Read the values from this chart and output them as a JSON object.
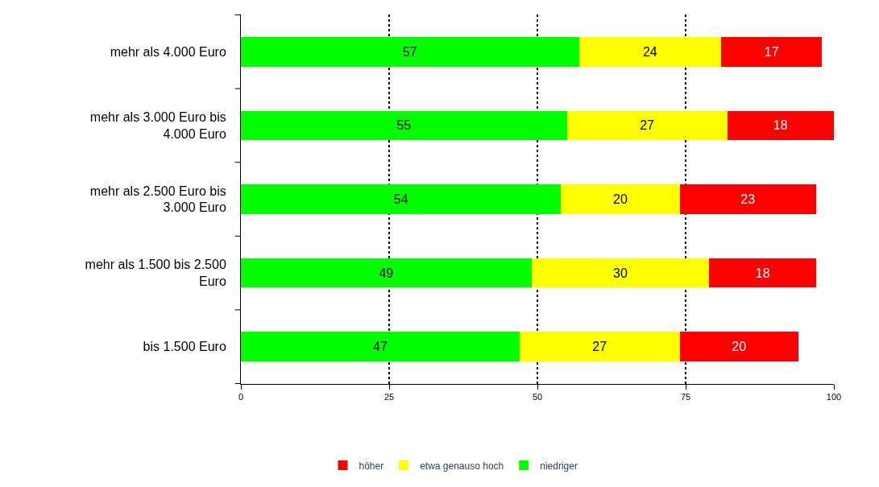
{
  "chart_data": {
    "type": "bar",
    "orientation": "horizontal",
    "stacked": true,
    "categories": [
      "mehr als 4.000 Euro",
      "mehr als 3.000 Euro bis 4.000 Euro",
      "mehr als 2.500 Euro bis 3.000 Euro",
      "mehr als 1.500 bis 2.500 Euro",
      "bis 1.500 Euro"
    ],
    "series": [
      {
        "name": "niedriger",
        "color": "#00ff00",
        "values": [
          57,
          55,
          54,
          49,
          47
        ]
      },
      {
        "name": "etwa genauso hoch",
        "color": "#ffff00",
        "values": [
          24,
          27,
          20,
          30,
          27
        ]
      },
      {
        "name": "höher",
        "color": "#ff0000",
        "values": [
          17,
          18,
          23,
          18,
          20
        ]
      }
    ],
    "xlim": [
      0,
      100
    ],
    "xticks": [
      0,
      25,
      50,
      75,
      100
    ],
    "grid": "x",
    "line_style": "dotted",
    "legend": "bottom",
    "data_labels": true
  }
}
